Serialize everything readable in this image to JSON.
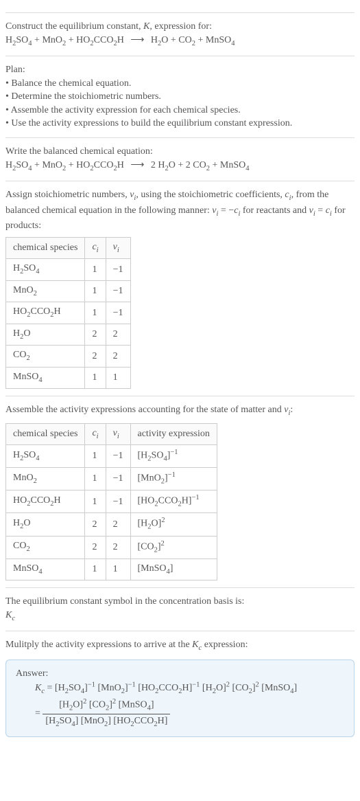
{
  "intro": {
    "line1_a": "Construct the equilibrium constant, ",
    "K": "K",
    "line1_b": ", expression for:"
  },
  "rxn_unbalanced": {
    "r1": "H",
    "r1s1": "2",
    "r1b": "SO",
    "r1s2": "4",
    "plus": " + ",
    "r2": "MnO",
    "r2s": "2",
    "r3": "HO",
    "r3s1": "2",
    "r3b": "CCO",
    "r3s2": "2",
    "r3c": "H",
    "arrow": "⟶",
    "p1": "H",
    "p1s": "2",
    "p1b": "O",
    "p2": "CO",
    "p2s": "2",
    "p3": "MnSO",
    "p3s": "4"
  },
  "plan": {
    "title": "Plan:",
    "b1": "• Balance the chemical equation.",
    "b2": "• Determine the stoichiometric numbers.",
    "b3": "• Assemble the activity expression for each chemical species.",
    "b4": "• Use the activity expressions to build the equilibrium constant expression."
  },
  "balanced_title": "Write the balanced chemical equation:",
  "rxn_balanced": {
    "c_p1": "2 ",
    "c_p2": "2 "
  },
  "stoich_text": {
    "a": "Assign stoichiometric numbers, ",
    "vi": "ν",
    "vi_sub": "i",
    "b": ", using the stoichiometric coefficients, ",
    "ci": "c",
    "ci_sub": "i",
    "c": ", from the balanced chemical equation in the following manner: ",
    "eq1a": "ν",
    "eq1as": "i",
    "eq1eq": " = −",
    "eq1b": "c",
    "eq1bs": "i",
    "d": " for reactants and ",
    "eq2a": "ν",
    "eq2as": "i",
    "eq2eq": " = ",
    "eq2b": "c",
    "eq2bs": "i",
    "e": " for products:"
  },
  "table1": {
    "h1": "chemical species",
    "h2": "c",
    "h2s": "i",
    "h3": "ν",
    "h3s": "i",
    "rows": [
      {
        "sp": "H2SO4",
        "c": "1",
        "v": "−1"
      },
      {
        "sp": "MnO2",
        "c": "1",
        "v": "−1"
      },
      {
        "sp": "HO2CCO2H",
        "c": "1",
        "v": "−1"
      },
      {
        "sp": "H2O",
        "c": "2",
        "v": "2"
      },
      {
        "sp": "CO2",
        "c": "2",
        "v": "2"
      },
      {
        "sp": "MnSO4",
        "c": "1",
        "v": "1"
      }
    ]
  },
  "activity_text": {
    "a": "Assemble the activity expressions accounting for the state of matter and ",
    "vi": "ν",
    "vis": "i",
    "b": ":"
  },
  "table2": {
    "h1": "chemical species",
    "h2": "c",
    "h2s": "i",
    "h3": "ν",
    "h3s": "i",
    "h4": "activity expression",
    "rows": [
      {
        "sp": "H2SO4",
        "c": "1",
        "v": "−1",
        "act": "[H2SO4]",
        "exp": "−1"
      },
      {
        "sp": "MnO2",
        "c": "1",
        "v": "−1",
        "act": "[MnO2]",
        "exp": "−1"
      },
      {
        "sp": "HO2CCO2H",
        "c": "1",
        "v": "−1",
        "act": "[HO2CCO2H]",
        "exp": "−1"
      },
      {
        "sp": "H2O",
        "c": "2",
        "v": "2",
        "act": "[H2O]",
        "exp": "2"
      },
      {
        "sp": "CO2",
        "c": "2",
        "v": "2",
        "act": "[CO2]",
        "exp": "2"
      },
      {
        "sp": "MnSO4",
        "c": "1",
        "v": "1",
        "act": "[MnSO4]",
        "exp": ""
      }
    ]
  },
  "kc_symbol_text": "The equilibrium constant symbol in the concentration basis is:",
  "kc": "K",
  "kc_sub": "c",
  "mult_text_a": "Mulitply the activity expressions to arrive at the ",
  "mult_text_b": " expression:",
  "answer_label": "Answer:",
  "answer": {
    "lhs": "K",
    "lhs_sub": "c",
    "eq": " = ",
    "t1": "[H",
    "t1s1": "2",
    "t1b": "SO",
    "t1s2": "4",
    "t1e": "]",
    "t1x": "−1",
    "t2": "[MnO",
    "t2s": "2",
    "t2e": "]",
    "t2x": "−1",
    "t3": "[HO",
    "t3s1": "2",
    "t3b": "CCO",
    "t3s2": "2",
    "t3c": "H]",
    "t3x": "−1",
    "t4": "[H",
    "t4s": "2",
    "t4b": "O]",
    "t4x": "2",
    "t5": "[CO",
    "t5s": "2",
    "t5e": "]",
    "t5x": "2",
    "t6": "[MnSO",
    "t6s": "4",
    "t6e": "]",
    "frac_eq": "= ",
    "num1": "[H",
    "num1s": "2",
    "num1b": "O]",
    "num1x": "2",
    "num2": " [CO",
    "num2s": "2",
    "num2e": "]",
    "num2x": "2",
    "num3": " [MnSO",
    "num3s": "4",
    "num3e": "]",
    "den1": "[H",
    "den1s1": "2",
    "den1b": "SO",
    "den1s2": "4",
    "den1e": "]",
    "den2": " [MnO",
    "den2s": "2",
    "den2e": "]",
    "den3": " [HO",
    "den3s1": "2",
    "den3b": "CCO",
    "den3s2": "2",
    "den3c": "H]"
  },
  "species_html": {
    "H2SO4": "H<sub>2</sub>SO<sub>4</sub>",
    "MnO2": "MnO<sub>2</sub>",
    "HO2CCO2H": "HO<sub>2</sub>CCO<sub>2</sub>H",
    "H2O": "H<sub>2</sub>O",
    "CO2": "CO<sub>2</sub>",
    "MnSO4": "MnSO<sub>4</sub>"
  },
  "act_html": {
    "[H2SO4]": "[H<sub>2</sub>SO<sub>4</sub>]",
    "[MnO2]": "[MnO<sub>2</sub>]",
    "[HO2CCO2H]": "[HO<sub>2</sub>CCO<sub>2</sub>H]",
    "[H2O]": "[H<sub>2</sub>O]",
    "[CO2]": "[CO<sub>2</sub>]",
    "[MnSO4]": "[MnSO<sub>4</sub>]"
  }
}
